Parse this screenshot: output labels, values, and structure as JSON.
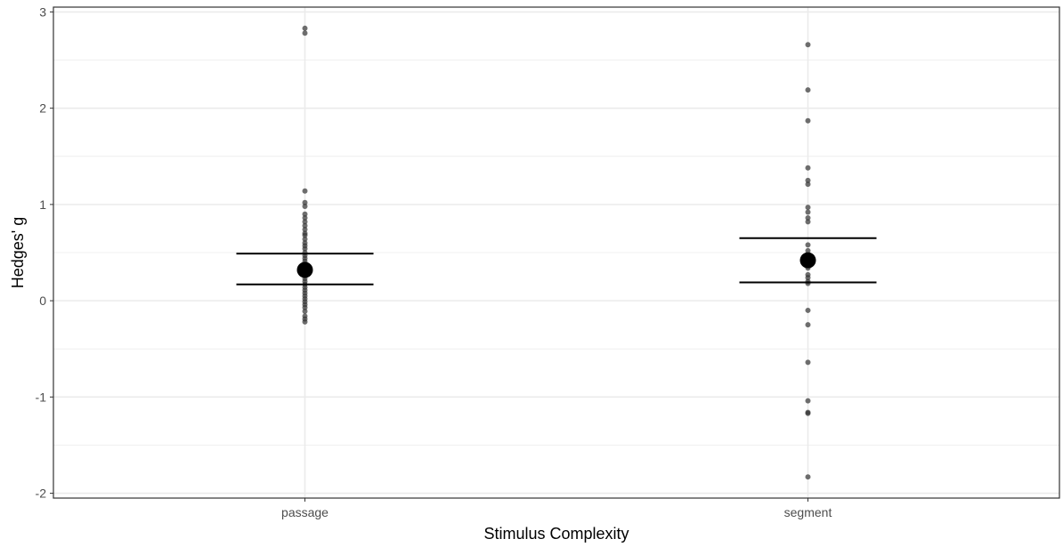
{
  "chart_data": {
    "type": "scatter",
    "xlabel": "Stimulus Complexity",
    "ylabel": "Hedges' g",
    "categories": [
      "passage",
      "segment"
    ],
    "ylim": [
      -2.05,
      3.05
    ],
    "yticks": [
      -2,
      -1,
      0,
      1,
      2,
      3
    ],
    "ytick_labels": [
      "-2",
      "-1",
      "0",
      "1",
      "2",
      "3"
    ],
    "grid": true,
    "points": [
      {
        "category": "passage",
        "values": [
          2.83,
          2.78,
          1.14,
          1.02,
          0.98,
          0.9,
          0.86,
          0.82,
          0.78,
          0.74,
          0.7,
          0.68,
          0.64,
          0.6,
          0.57,
          0.54,
          0.5,
          0.47,
          0.44,
          0.41,
          0.38,
          0.35,
          0.32,
          0.29,
          0.26,
          0.23,
          0.2,
          0.17,
          0.14,
          0.11,
          0.08,
          0.05,
          0.02,
          -0.01,
          -0.04,
          -0.07,
          -0.11,
          -0.16,
          -0.19,
          -0.22
        ]
      },
      {
        "category": "segment",
        "values": [
          2.66,
          2.19,
          1.87,
          1.38,
          1.25,
          1.21,
          0.97,
          0.92,
          0.86,
          0.82,
          0.58,
          0.52,
          0.45,
          0.4,
          0.34,
          0.27,
          0.24,
          0.2,
          0.18,
          -0.1,
          -0.25,
          -0.64,
          -1.04,
          -1.16,
          -1.17,
          -1.83
        ]
      }
    ],
    "summary": [
      {
        "category": "passage",
        "mean": 0.32,
        "ci_low": 0.17,
        "ci_high": 0.49
      },
      {
        "category": "segment",
        "mean": 0.42,
        "ci_low": 0.19,
        "ci_high": 0.65
      }
    ],
    "colors": {
      "points": "#333333",
      "summary": "#000000",
      "grid": "#ebebeb",
      "border": "#333333"
    }
  }
}
